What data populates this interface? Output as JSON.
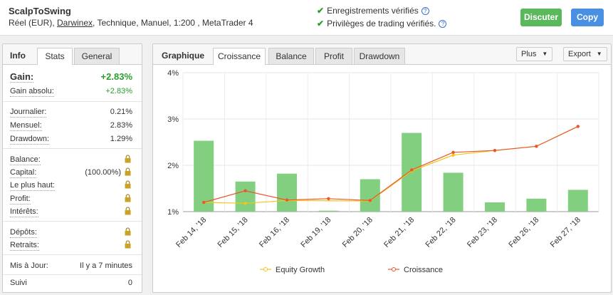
{
  "header": {
    "account_name": "ScalpToSwing",
    "info_prefix": "Réel (EUR), ",
    "broker": "Darwinex",
    "info_suffix": ", Technique, Manuel, 1:200 , MetaTrader 4",
    "verified_records": "Enregistrements vérifiés",
    "verified_privileges": "Privilèges de trading vérifiés.",
    "discuss_label": "Discuter",
    "copy_label": "Copy"
  },
  "left_tabs": {
    "info": "Info",
    "stats": "Stats",
    "general": "General"
  },
  "stats": {
    "gain_label": "Gain:",
    "gain_value": "+2.83%",
    "abs_gain_label": "Gain absolu:",
    "abs_gain_value": "+2.83%",
    "daily_label": "Journalier:",
    "daily_value": "0.21%",
    "monthly_label": "Mensuel:",
    "monthly_value": "2.83%",
    "drawdown_label": "Drawdown:",
    "drawdown_value": "1.29%",
    "balance_label": "Balance:",
    "equity_label": "Capital:",
    "equity_value": "(100.00%)",
    "highest_label": "Le plus haut:",
    "profit_label": "Profit:",
    "interest_label": "Intérêts:",
    "deposits_label": "Dépôts:",
    "withdrawals_label": "Retraits:",
    "updated_label": "Mis à Jour:",
    "updated_value": "Il y a 7 minutes",
    "followers_label": "Suivi",
    "followers_value": "0"
  },
  "chart_panel": {
    "title": "Graphique",
    "tabs": [
      "Croissance",
      "Balance",
      "Profit",
      "Drawdown"
    ],
    "plus_label": "Plus",
    "export_label": "Export"
  },
  "chart_data": {
    "type": "bar",
    "categories": [
      "Feb 14, '18",
      "Feb 15, '18",
      "Feb 16, '18",
      "Feb 19, '18",
      "Feb 20, '18",
      "Feb 21, '18",
      "Feb 22, '18",
      "Feb 23, '18",
      "Feb 26, '18",
      "Feb 27, '18"
    ],
    "yticks": [
      "1%",
      "2%",
      "3%",
      "4%"
    ],
    "ylim": [
      1,
      4
    ],
    "bars": [
      2.53,
      1.65,
      1.82,
      1.02,
      1.7,
      2.7,
      1.84,
      1.2,
      1.28,
      1.47
    ],
    "series": [
      {
        "name": "Equity Growth",
        "color": "#f5c518",
        "values": [
          1.2,
          1.18,
          1.24,
          null,
          1.23,
          1.88,
          2.22,
          2.32,
          2.41,
          2.84
        ]
      },
      {
        "name": "Croissance",
        "color": "#e8572e",
        "values": [
          1.2,
          1.45,
          1.25,
          1.28,
          1.24,
          1.9,
          2.28,
          2.32,
          2.41,
          2.84
        ]
      }
    ],
    "bar_color": "#82cf7f",
    "grid": true,
    "legend": "bottom"
  }
}
